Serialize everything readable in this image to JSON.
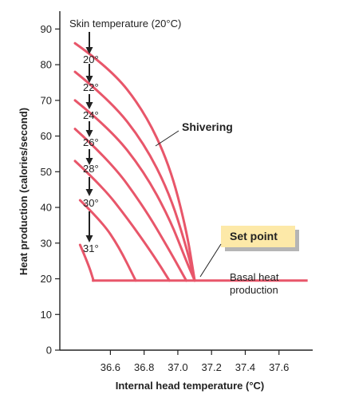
{
  "chart_data": {
    "type": "line",
    "xlabel": "Internal head temperature (°C)",
    "ylabel": "Heat production (calories/second)",
    "xlim": [
      36.3,
      37.8
    ],
    "ylim": [
      0,
      95
    ],
    "x_ticks": [
      "36.6",
      "36.8",
      "37.0",
      "37.2",
      "37.4",
      "37.6"
    ],
    "y_ticks": [
      "0",
      "10",
      "20",
      "30",
      "40",
      "50",
      "60",
      "70",
      "80",
      "90"
    ],
    "basal_level": 19.5,
    "basal_x_range": [
      36.49,
      37.77
    ],
    "skin_title": "Skin temperature (20°C)",
    "series": [
      {
        "name": "20°",
        "x": [
          36.39,
          36.6,
          36.8,
          36.95,
          37.05,
          37.1
        ],
        "y": [
          86,
          79,
          67,
          52,
          34,
          19.5
        ]
      },
      {
        "name": "22°",
        "x": [
          36.39,
          36.6,
          36.8,
          36.95,
          37.05,
          37.1
        ],
        "y": [
          78,
          70,
          58,
          44,
          29,
          19.5
        ]
      },
      {
        "name": "24°",
        "x": [
          36.39,
          36.6,
          36.8,
          36.95,
          37.05,
          37.1
        ],
        "y": [
          70,
          62,
          50,
          37,
          25,
          19.5
        ]
      },
      {
        "name": "26°",
        "x": [
          36.39,
          36.6,
          36.8,
          36.95,
          37.05
        ],
        "y": [
          62,
          53,
          40,
          28,
          19.5
        ]
      },
      {
        "name": "28°",
        "x": [
          36.39,
          36.55,
          36.7,
          36.85,
          36.95
        ],
        "y": [
          53,
          46,
          37,
          27,
          19.5
        ]
      },
      {
        "name": "30°",
        "x": [
          36.42,
          36.55,
          36.65,
          36.75
        ],
        "y": [
          42,
          36,
          29,
          19.5
        ]
      },
      {
        "name": "31°",
        "x": [
          36.42,
          36.47,
          36.5
        ],
        "y": [
          29.5,
          24,
          19.5
        ]
      }
    ],
    "annotations": {
      "shivering": "Shivering",
      "set_point": "Set point",
      "basal_line1": "Basal heat",
      "basal_line2": "production"
    },
    "colors": {
      "curve": "#e8566a",
      "set_point_box": "#fde9a8",
      "set_point_shadow": "#b5b5b5",
      "axis": "#222222"
    }
  }
}
